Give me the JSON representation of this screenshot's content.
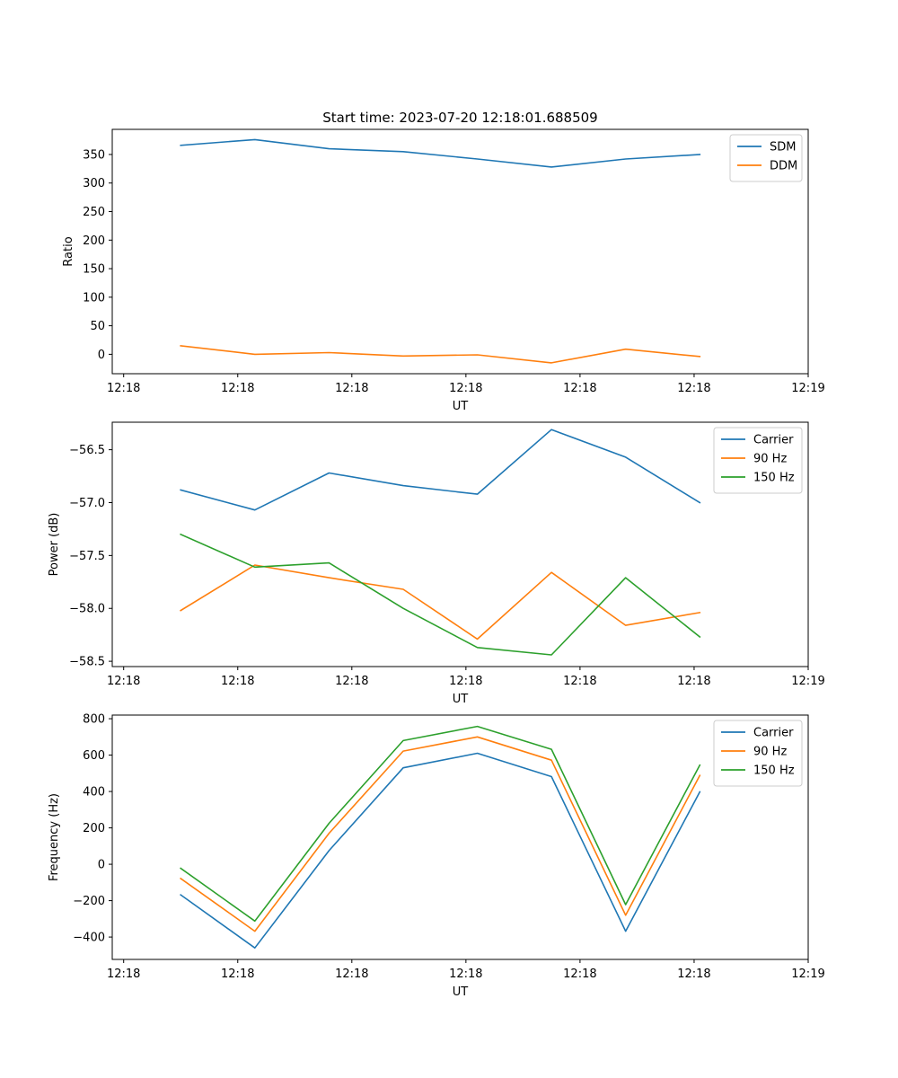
{
  "figure_title": "Start time: 2023-07-20 12:18:01.688509",
  "colors": {
    "c1": "#1f77b4",
    "c2": "#ff7f0e",
    "c3": "#2ca02c"
  },
  "chart_data": [
    {
      "type": "line",
      "title": "Start time: 2023-07-20 12:18:01.688509",
      "xlabel": "UT",
      "ylabel": "Ratio",
      "x_tick_labels": [
        "12:18",
        "12:18",
        "12:18",
        "12:18",
        "12:18",
        "12:18",
        "12:19"
      ],
      "x_tick_positions": [
        0,
        1,
        2,
        3,
        4,
        5,
        6
      ],
      "xlim": [
        -0.1,
        6.0
      ],
      "x": [
        0.5,
        1.15,
        1.8,
        2.45,
        3.1,
        3.75,
        4.4,
        5.05
      ],
      "ylim": [
        -34,
        394
      ],
      "yticks": [
        0,
        50,
        100,
        150,
        200,
        250,
        300,
        350
      ],
      "ytick_labels": [
        "0",
        "50",
        "100",
        "150",
        "200",
        "250",
        "300",
        "350"
      ],
      "legend": "top-right",
      "series": [
        {
          "name": "SDM",
          "color": "#1f77b4",
          "values": [
            366,
            376,
            360,
            355,
            342,
            328,
            342,
            350
          ]
        },
        {
          "name": "DDM",
          "color": "#ff7f0e",
          "values": [
            15,
            0,
            3,
            -3,
            -1,
            -15,
            9,
            -4
          ]
        }
      ]
    },
    {
      "type": "line",
      "title": "",
      "xlabel": "UT",
      "ylabel": "Power (dB)",
      "x_tick_labels": [
        "12:18",
        "12:18",
        "12:18",
        "12:18",
        "12:18",
        "12:18",
        "12:19"
      ],
      "x_tick_positions": [
        0,
        1,
        2,
        3,
        4,
        5,
        6
      ],
      "xlim": [
        -0.1,
        6.0
      ],
      "x": [
        0.5,
        1.15,
        1.8,
        2.45,
        3.1,
        3.75,
        4.4,
        5.05
      ],
      "ylim": [
        -58.55,
        -56.24
      ],
      "yticks": [
        -58.5,
        -58.0,
        -57.5,
        -57.0,
        -56.5
      ],
      "ytick_labels": [
        "−58.5",
        "−58.0",
        "−57.5",
        "−57.0",
        "−56.5"
      ],
      "legend": "top-right",
      "series": [
        {
          "name": "Carrier",
          "color": "#1f77b4",
          "values": [
            -56.88,
            -57.07,
            -56.72,
            -56.84,
            -56.92,
            -56.31,
            -56.57,
            -57.0
          ]
        },
        {
          "name": "90 Hz",
          "color": "#ff7f0e",
          "values": [
            -58.02,
            -57.59,
            -57.71,
            -57.82,
            -58.29,
            -57.66,
            -58.16,
            -58.04
          ]
        },
        {
          "name": "150 Hz",
          "color": "#2ca02c",
          "values": [
            -57.3,
            -57.61,
            -57.57,
            -58.0,
            -58.37,
            -58.44,
            -57.71,
            -58.27
          ]
        }
      ]
    },
    {
      "type": "line",
      "title": "",
      "xlabel": "UT",
      "ylabel": "Frequency (Hz)",
      "x_tick_labels": [
        "12:18",
        "12:18",
        "12:18",
        "12:18",
        "12:18",
        "12:18",
        "12:19"
      ],
      "x_tick_positions": [
        0,
        1,
        2,
        3,
        4,
        5,
        6
      ],
      "xlim": [
        -0.1,
        6.0
      ],
      "x": [
        0.5,
        1.15,
        1.8,
        2.45,
        3.1,
        3.75,
        4.4,
        5.05
      ],
      "ylim": [
        -523,
        820
      ],
      "yticks": [
        -400,
        -200,
        0,
        200,
        400,
        600,
        800
      ],
      "ytick_labels": [
        "−400",
        "−200",
        "0",
        "200",
        "400",
        "600",
        "800"
      ],
      "legend": "top-right",
      "series": [
        {
          "name": "Carrier",
          "color": "#1f77b4",
          "values": [
            -168,
            -460,
            75,
            530,
            610,
            482,
            -368,
            398
          ]
        },
        {
          "name": "90 Hz",
          "color": "#ff7f0e",
          "values": [
            -78,
            -368,
            170,
            622,
            700,
            572,
            -280,
            488
          ]
        },
        {
          "name": "150 Hz",
          "color": "#2ca02c",
          "values": [
            -22,
            -312,
            225,
            680,
            758,
            632,
            -222,
            545
          ]
        }
      ]
    }
  ]
}
